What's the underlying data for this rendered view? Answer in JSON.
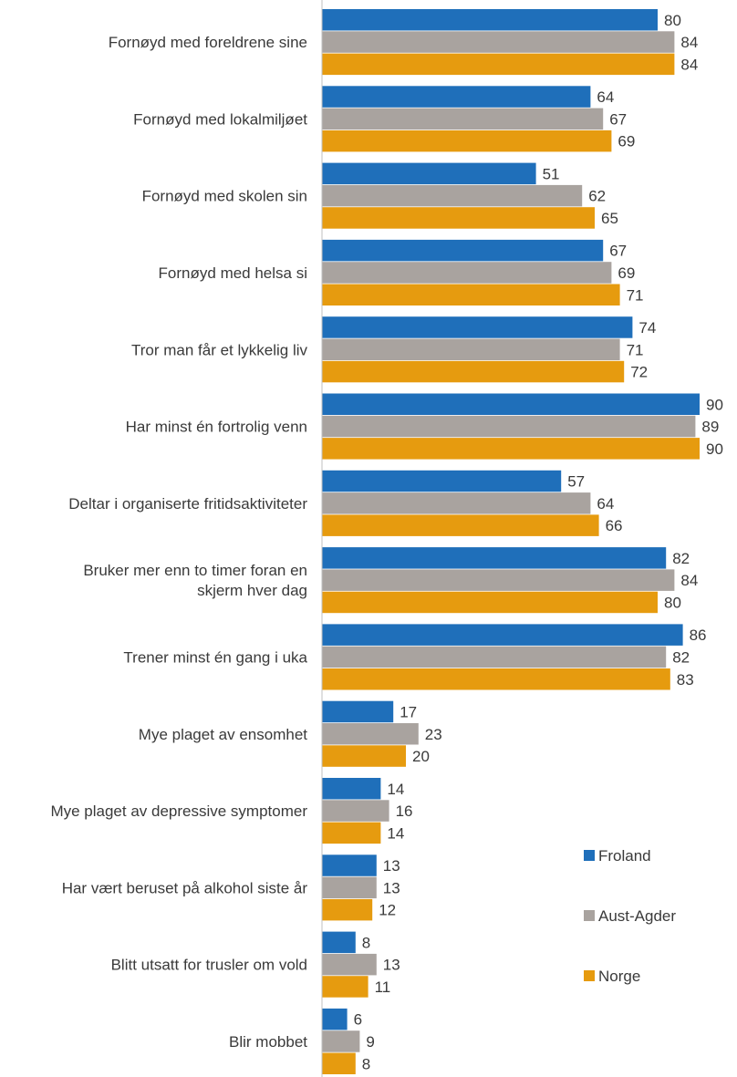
{
  "chart_data": {
    "type": "bar",
    "orientation": "horizontal",
    "categories": [
      "Fornøyd med foreldrene sine",
      "Fornøyd med lokalmiljøet",
      "Fornøyd med skolen sin",
      "Fornøyd med helsa si",
      "Tror man får et lykkelig liv",
      "Har minst én fortrolig venn",
      "Deltar i organiserte fritidsaktiviteter",
      "Bruker mer enn to timer foran en skjerm hver dag",
      "Trener minst én gang i uka",
      "Mye plaget av ensomhet",
      "Mye plaget av depressive symptomer",
      "Har vært beruset på alkohol siste år",
      "Blitt utsatt for trusler om vold",
      "Blir mobbet"
    ],
    "category_lines": [
      [
        "Fornøyd med foreldrene sine"
      ],
      [
        "Fornøyd med lokalmiljøet"
      ],
      [
        "Fornøyd med skolen sin"
      ],
      [
        "Fornøyd med helsa si"
      ],
      [
        "Tror man får et lykkelig liv"
      ],
      [
        "Har minst én fortrolig venn"
      ],
      [
        "Deltar i organiserte fritidsaktiviteter"
      ],
      [
        "Bruker mer enn to timer foran en",
        "skjerm hver dag"
      ],
      [
        "Trener minst én gang i uka"
      ],
      [
        "Mye plaget av ensomhet"
      ],
      [
        "Mye plaget av depressive symptomer"
      ],
      [
        "Har vært beruset på alkohol siste år"
      ],
      [
        "Blitt utsatt for trusler om vold"
      ],
      [
        "Blir mobbet"
      ]
    ],
    "series": [
      {
        "name": "Froland",
        "color": "#1f6fba",
        "values": [
          80,
          64,
          51,
          67,
          74,
          90,
          57,
          82,
          86,
          17,
          14,
          13,
          8,
          6
        ]
      },
      {
        "name": "Aust-Agder",
        "color": "#a9a39f",
        "values": [
          84,
          67,
          62,
          69,
          71,
          89,
          64,
          84,
          82,
          23,
          16,
          13,
          13,
          9
        ]
      },
      {
        "name": "Norge",
        "color": "#e69b0f",
        "values": [
          84,
          69,
          65,
          71,
          72,
          90,
          66,
          80,
          83,
          20,
          14,
          12,
          11,
          8
        ]
      }
    ],
    "xlim": [
      0,
      100
    ],
    "axis_color": "#bfbfbf",
    "legend_position": "right"
  }
}
